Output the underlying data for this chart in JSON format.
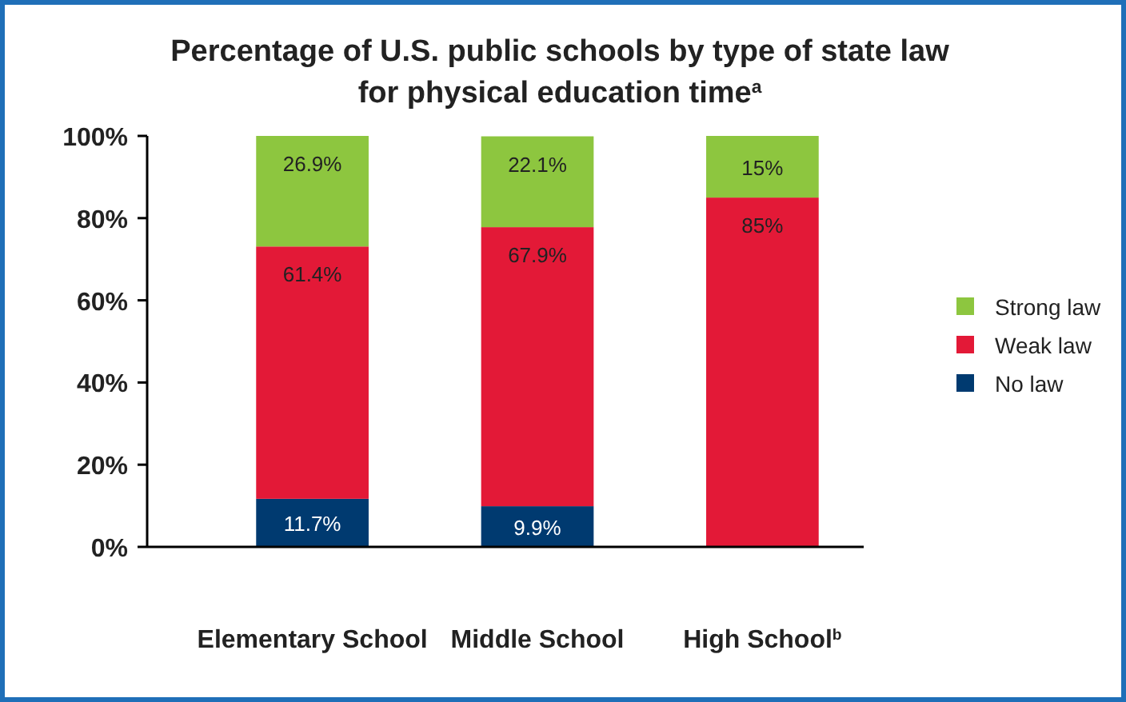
{
  "chart_data": {
    "type": "bar",
    "stacked": true,
    "title": "Percentage of U.S. public schools by type of state law for physical education time$^{a}$",
    "categories": [
      "Elementary School",
      "Middle School",
      "High School$^{b}$"
    ],
    "series": [
      {
        "name": "No law",
        "color": "#003a70",
        "values": [
          11.7,
          9.9,
          null
        ],
        "value_labels": [
          "11.7%",
          "9.9%",
          null
        ]
      },
      {
        "name": "Weak law",
        "color": "#e31937",
        "values": [
          61.4,
          67.9,
          85
        ],
        "value_labels": [
          "61.4%",
          "67.9%",
          "85%"
        ]
      },
      {
        "name": "Strong law",
        "color": "#8dc63f",
        "values": [
          26.9,
          22.1,
          15
        ],
        "value_labels": [
          "26.9%",
          "22.1%",
          "15%"
        ]
      }
    ],
    "ylim": [
      0,
      100
    ],
    "yticks": [
      {
        "value": 0,
        "label": "0%"
      },
      {
        "value": 20,
        "label": "20%"
      },
      {
        "value": 40,
        "label": "40%"
      },
      {
        "value": 60,
        "label": "60%"
      },
      {
        "value": 80,
        "label": "80%"
      },
      {
        "value": 100,
        "label": "100%"
      }
    ],
    "legend": "right"
  }
}
